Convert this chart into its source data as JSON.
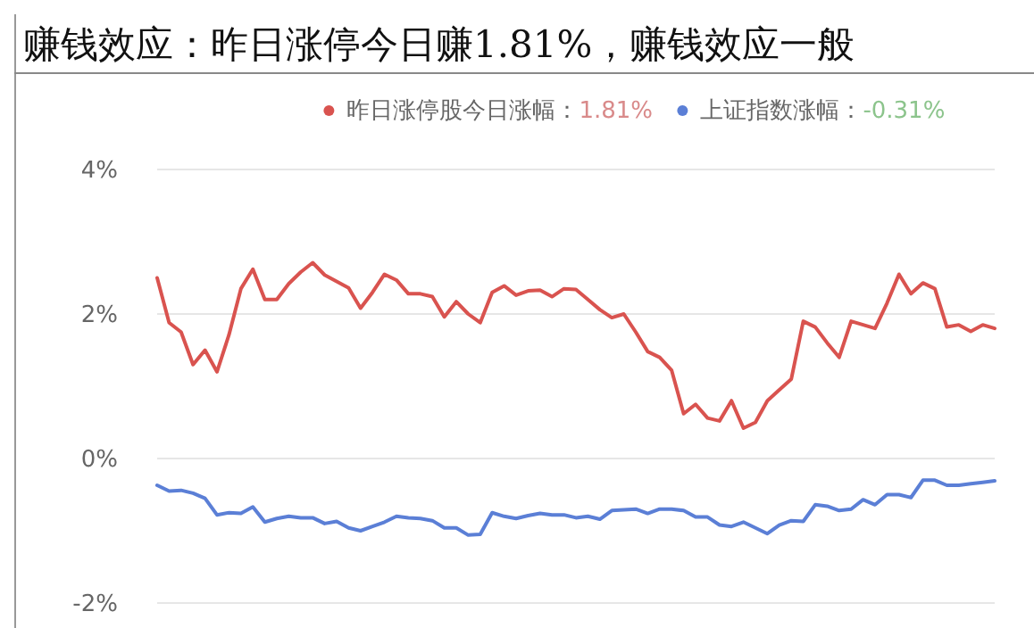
{
  "chart_data": {
    "type": "line",
    "title": "赚钱效应：昨日涨停今日赚1.81%，赚钱效应一般",
    "categories": [
      null,
      null,
      null,
      null,
      null,
      null,
      null,
      null,
      null,
      null,
      null,
      null,
      null,
      null,
      null,
      null,
      null,
      null,
      null,
      null,
      null,
      null,
      null,
      null,
      null,
      null,
      null,
      null,
      null,
      null,
      null,
      null,
      null,
      null,
      null,
      null,
      null,
      null,
      null,
      null,
      null,
      null,
      null,
      null,
      null,
      null,
      null,
      null,
      null,
      null,
      null,
      null,
      null,
      null,
      null,
      null,
      null,
      null,
      null,
      null,
      null,
      null,
      null,
      null,
      null,
      null,
      null,
      null,
      null,
      null,
      null
    ],
    "series": [
      {
        "name": "昨日涨停股今日涨幅：",
        "color": "#d9534f",
        "values": [
          2.5,
          1.88,
          1.75,
          1.3,
          1.5,
          1.2,
          1.71,
          2.35,
          2.62,
          2.2,
          2.2,
          2.42,
          2.58,
          2.71,
          2.54,
          2.45,
          2.36,
          2.08,
          2.3,
          2.55,
          2.47,
          2.28,
          2.28,
          2.24,
          1.96,
          2.17,
          2.0,
          1.88,
          2.3,
          2.39,
          2.26,
          2.32,
          2.33,
          2.24,
          2.35,
          2.34,
          2.2,
          2.06,
          1.95,
          2.0,
          1.75,
          1.48,
          1.4,
          1.22,
          0.62,
          0.75,
          0.56,
          0.52,
          0.8,
          0.42,
          0.5,
          0.8,
          0.95,
          1.1,
          1.9,
          1.82,
          1.6,
          1.4,
          1.9,
          1.85,
          1.8,
          2.15,
          2.55,
          2.28,
          2.43,
          2.35,
          1.82,
          1.85,
          1.76,
          1.85,
          1.8
        ]
      },
      {
        "name": "上证指数涨幅：",
        "color": "#5b7fd6",
        "values": [
          -0.37,
          -0.45,
          -0.44,
          -0.48,
          -0.55,
          -0.78,
          -0.75,
          -0.76,
          -0.67,
          -0.88,
          -0.83,
          -0.8,
          -0.82,
          -0.82,
          -0.9,
          -0.87,
          -0.96,
          -1.0,
          -0.94,
          -0.88,
          -0.8,
          -0.82,
          -0.83,
          -0.86,
          -0.96,
          -0.96,
          -1.06,
          -1.05,
          -0.75,
          -0.8,
          -0.83,
          -0.79,
          -0.76,
          -0.78,
          -0.78,
          -0.82,
          -0.8,
          -0.84,
          -0.72,
          -0.71,
          -0.7,
          -0.76,
          -0.7,
          -0.7,
          -0.72,
          -0.81,
          -0.81,
          -0.92,
          -0.94,
          -0.88,
          -0.96,
          -1.04,
          -0.92,
          -0.86,
          -0.87,
          -0.64,
          -0.66,
          -0.72,
          -0.7,
          -0.57,
          -0.64,
          -0.5,
          -0.5,
          -0.54,
          -0.3,
          -0.3,
          -0.37,
          -0.37,
          -0.35,
          -0.33,
          -0.31
        ]
      }
    ],
    "annotations": [
      "1.81%",
      "-0.31%"
    ],
    "ylim": [
      -2,
      4
    ],
    "yticks": [
      {
        "value": -2,
        "label": "-2%"
      },
      {
        "value": 0,
        "label": "0%"
      },
      {
        "value": 2,
        "label": "2%"
      },
      {
        "value": 4,
        "label": "4%"
      }
    ],
    "grid": "y",
    "legend": "top",
    "marker": "none",
    "line_style": "solid"
  }
}
